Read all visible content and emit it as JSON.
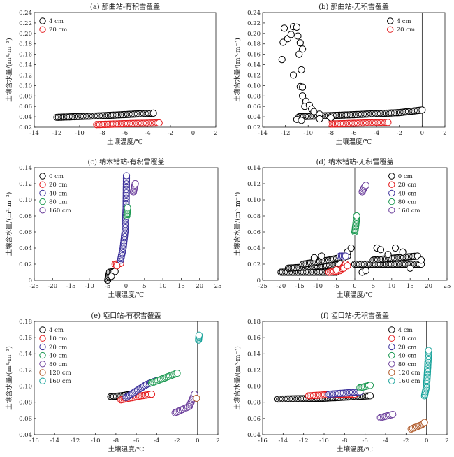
{
  "chart_data": [
    {
      "type": "scatter",
      "title": "(a) 那曲站-有积雪覆盖",
      "xlabel": "土壤温度/℃",
      "ylabel": "土壤含水量/(m³·m⁻³)",
      "xlim": [
        -14,
        2
      ],
      "ylim": [
        0.02,
        0.24
      ],
      "xticks": [
        -14,
        -12,
        -10,
        -8,
        -6,
        -4,
        -2,
        0,
        2
      ],
      "yticks": [
        0.02,
        0.04,
        0.06,
        0.08,
        0.1,
        0.12,
        0.14,
        0.16,
        0.18,
        0.2,
        0.22,
        0.24
      ],
      "ytick_labels": [
        "0.02",
        "0.04",
        "0.06",
        "0.08",
        "0.10",
        "0.12",
        "0.14",
        "0.16",
        "0.18",
        "0.20",
        "0.22",
        "0.24"
      ],
      "vline": 0,
      "legend": "top-left",
      "series": [
        {
          "name": "4 cm",
          "color": "#000000",
          "segments": [
            [
              [
                -12.0,
                0.039
              ],
              [
                -8.0,
                0.042
              ],
              [
                -3.5,
                0.047
              ]
            ]
          ],
          "points": []
        },
        {
          "name": "20 cm",
          "color": "#e41a1c",
          "segments": [
            [
              [
                -8.5,
                0.025
              ],
              [
                -5.5,
                0.027
              ],
              [
                -3.0,
                0.028
              ]
            ]
          ],
          "points": []
        }
      ]
    },
    {
      "type": "scatter",
      "title": "(b) 那曲站-无积雪覆盖",
      "xlabel": "土壤温度/℃",
      "ylabel": "土壤含水量/(m³·m⁻³)",
      "xlim": [
        -14,
        2
      ],
      "ylim": [
        0.02,
        0.24
      ],
      "xticks": [
        -14,
        -12,
        -10,
        -8,
        -6,
        -4,
        -2,
        0,
        2
      ],
      "yticks": [
        0.02,
        0.04,
        0.06,
        0.08,
        0.1,
        0.12,
        0.14,
        0.16,
        0.18,
        0.2,
        0.22,
        0.24
      ],
      "ytick_labels": [
        "0.02",
        "0.04",
        "0.06",
        "0.08",
        "0.10",
        "0.12",
        "0.14",
        "0.16",
        "0.18",
        "0.20",
        "0.22",
        "0.24"
      ],
      "vline": 0,
      "legend": "top-right",
      "series": [
        {
          "name": "4 cm",
          "color": "#000000",
          "segments": [
            [
              [
                -10.8,
                0.04
              ],
              [
                -6.0,
                0.044
              ],
              [
                -2.0,
                0.048
              ],
              [
                0.0,
                0.053
              ]
            ]
          ],
          "points": [
            [
              -12.3,
              0.15
            ],
            [
              -12.2,
              0.183
            ],
            [
              -12.1,
              0.21
            ],
            [
              -11.8,
              0.19
            ],
            [
              -11.5,
              0.198
            ],
            [
              -11.3,
              0.213
            ],
            [
              -11.0,
              0.212
            ],
            [
              -10.9,
              0.195
            ],
            [
              -10.7,
              0.182
            ],
            [
              -10.5,
              0.17
            ],
            [
              -10.8,
              0.16
            ],
            [
              -11.3,
              0.12
            ],
            [
              -10.6,
              0.13
            ],
            [
              -10.7,
              0.098
            ],
            [
              -10.5,
              0.097
            ],
            [
              -10.5,
              0.08
            ],
            [
              -10.2,
              0.07
            ],
            [
              -10.3,
              0.06
            ],
            [
              -9.9,
              0.062
            ],
            [
              -9.7,
              0.055
            ],
            [
              -9.5,
              0.05
            ],
            [
              -9.0,
              0.045
            ],
            [
              -11.0,
              0.035
            ],
            [
              -10.6,
              0.033
            ],
            [
              -9.0,
              0.036
            ],
            [
              -8.0,
              0.038
            ]
          ]
        },
        {
          "name": "20 cm",
          "color": "#e41a1c",
          "segments": [
            [
              [
                -8.0,
                0.026
              ],
              [
                -5.0,
                0.028
              ],
              [
                -3.0,
                0.029
              ]
            ]
          ],
          "points": []
        }
      ]
    },
    {
      "type": "scatter",
      "title": "(c) 纳木错站-有积雪覆盖",
      "xlabel": "土壤温度/℃",
      "ylabel": "土壤含水量/(m³·m⁻³)",
      "xlim": [
        -25,
        25
      ],
      "ylim": [
        0,
        0.14
      ],
      "xticks": [
        -25,
        -20,
        -15,
        -10,
        -5,
        0,
        5,
        10,
        15,
        20,
        25
      ],
      "yticks": [
        0,
        0.02,
        0.04,
        0.06,
        0.08,
        0.1,
        0.12,
        0.14
      ],
      "ytick_labels": [
        "0",
        "0.02",
        "0.04",
        "0.06",
        "0.08",
        "0.10",
        "0.12",
        "0.14"
      ],
      "vline": 0,
      "legend": "top-left",
      "series": [
        {
          "name": "0 cm",
          "color": "#000000",
          "segments": [
            [
              [
                -5.0,
                0.0
              ],
              [
                -4.5,
                0.01
              ],
              [
                -3.0,
                0.011
              ]
            ]
          ],
          "points": [
            [
              -4.0,
              0.005
            ]
          ]
        },
        {
          "name": "20 cm",
          "color": "#e41a1c",
          "segments": [
            [
              [
                -3.0,
                0.02
              ],
              [
                -1.5,
                0.021
              ]
            ]
          ],
          "points": [
            [
              -2.5,
              0.018
            ]
          ]
        },
        {
          "name": "40 cm",
          "color": "#3a2f9a",
          "segments": [
            [
              [
                -1.5,
                0.025
              ],
              [
                -0.8,
                0.04
              ],
              [
                -0.3,
                0.06
              ],
              [
                0.0,
                0.09
              ],
              [
                0.1,
                0.13
              ]
            ]
          ],
          "points": []
        },
        {
          "name": "80 cm",
          "color": "#1a9850",
          "segments": [
            [
              [
                0.2,
                0.08
              ],
              [
                0.4,
                0.09
              ]
            ]
          ],
          "points": []
        },
        {
          "name": "160 cm",
          "color": "#6a3d9a",
          "segments": [
            [
              [
                2.0,
                0.11
              ],
              [
                2.5,
                0.12
              ]
            ]
          ],
          "points": []
        }
      ]
    },
    {
      "type": "scatter",
      "title": "(d) 纳木错站-无积雪覆盖",
      "xlabel": "土壤温度/℃",
      "ylabel": "土壤含水量/(m³·m⁻³)",
      "xlim": [
        -25,
        25
      ],
      "ylim": [
        0,
        0.14
      ],
      "xticks": [
        -25,
        -20,
        -15,
        -10,
        -5,
        0,
        5,
        10,
        15,
        20,
        25
      ],
      "yticks": [
        0,
        0.02,
        0.04,
        0.06,
        0.08,
        0.1,
        0.12,
        0.14
      ],
      "ytick_labels": [
        "0",
        "0.02",
        "0.04",
        "0.06",
        "0.08",
        "0.10",
        "0.12",
        "0.14"
      ],
      "vline": 0,
      "legend": "top-right",
      "series": [
        {
          "name": "0 cm",
          "color": "#000000",
          "segments": [
            [
              [
                -20.0,
                0.01
              ],
              [
                -10.0,
                0.01
              ],
              [
                -5.0,
                0.01
              ]
            ],
            [
              [
                -18.0,
                0.015
              ],
              [
                -8.0,
                0.018
              ],
              [
                -4.0,
                0.02
              ]
            ],
            [
              [
                -14.0,
                0.02
              ],
              [
                -7.0,
                0.025
              ],
              [
                -2.0,
                0.03
              ]
            ],
            [
              [
                0.0,
                0.02
              ],
              [
                10.0,
                0.02
              ],
              [
                18.0,
                0.02
              ]
            ],
            [
              [
                5.0,
                0.025
              ],
              [
                12.0,
                0.028
              ],
              [
                17.0,
                0.03
              ]
            ]
          ],
          "points": [
            [
              -3.0,
              0.028
            ],
            [
              -2.0,
              0.035
            ],
            [
              -1.0,
              0.04
            ],
            [
              6.0,
              0.04
            ],
            [
              7.0,
              0.038
            ],
            [
              11.0,
              0.04
            ],
            [
              13.0,
              0.035
            ],
            [
              2.0,
              0.01
            ],
            [
              3.0,
              0.012
            ],
            [
              15.0,
              0.015
            ],
            [
              18.0,
              0.025
            ],
            [
              9.0,
              0.032
            ],
            [
              -11.0,
              0.028
            ],
            [
              -9.0,
              0.03
            ]
          ]
        },
        {
          "name": "20 cm",
          "color": "#e41a1c",
          "segments": [
            [
              [
                -7.0,
                0.01
              ],
              [
                -4.0,
                0.012
              ],
              [
                -2.5,
                0.02
              ]
            ]
          ],
          "points": [
            [
              -3.0,
              0.015
            ],
            [
              -2.0,
              0.018
            ],
            [
              -5.0,
              0.013
            ]
          ]
        },
        {
          "name": "40 cm",
          "color": "#3a2f9a",
          "segments": [
            [
              [
                -4.0,
                0.03
              ],
              [
                -2.5,
                0.03
              ]
            ]
          ],
          "points": []
        },
        {
          "name": "80 cm",
          "color": "#1a9850",
          "segments": [
            [
              [
                0.0,
                0.06
              ],
              [
                0.3,
                0.07
              ],
              [
                0.5,
                0.08
              ]
            ]
          ],
          "points": []
        },
        {
          "name": "160 cm",
          "color": "#6a3d9a",
          "segments": [
            [
              [
                2.0,
                0.11
              ],
              [
                2.5,
                0.115
              ],
              [
                3.0,
                0.118
              ]
            ]
          ],
          "points": []
        }
      ]
    },
    {
      "type": "scatter",
      "title": "(e) 埡口站-有积雪覆盖",
      "xlabel": "土壤温度/℃",
      "ylabel": "土壤含水量/(m³·m⁻³)",
      "xlim": [
        -16,
        2
      ],
      "ylim": [
        0.04,
        0.18
      ],
      "xticks": [
        -16,
        -14,
        -12,
        -10,
        -8,
        -6,
        -4,
        -2,
        0,
        2
      ],
      "yticks": [
        0.04,
        0.06,
        0.08,
        0.1,
        0.12,
        0.14,
        0.16,
        0.18
      ],
      "ytick_labels": [
        "0.04",
        "0.06",
        "0.08",
        "0.10",
        "0.12",
        "0.14",
        "0.16",
        "0.18"
      ],
      "vline": 0,
      "legend": "top-left",
      "series": [
        {
          "name": "4 cm",
          "color": "#000000",
          "segments": [
            [
              [
                -8.5,
                0.087
              ],
              [
                -7.5,
                0.088
              ],
              [
                -6.5,
                0.09
              ]
            ]
          ],
          "points": []
        },
        {
          "name": "10 cm",
          "color": "#e41a1c",
          "segments": [
            [
              [
                -7.5,
                0.083
              ],
              [
                -5.5,
                0.088
              ],
              [
                -4.5,
                0.09
              ]
            ]
          ],
          "points": []
        },
        {
          "name": "20 cm",
          "color": "#3a2f9a",
          "segments": [
            [
              [
                -7.0,
                0.086
              ],
              [
                -5.0,
                0.102
              ],
              [
                -4.0,
                0.107
              ]
            ]
          ],
          "points": []
        },
        {
          "name": "40 cm",
          "color": "#1a9850",
          "segments": [
            [
              [
                -4.5,
                0.104
              ],
              [
                -2.0,
                0.116
              ]
            ]
          ],
          "points": []
        },
        {
          "name": "80 cm",
          "color": "#6a3d9a",
          "segments": [
            [
              [
                -2.2,
                0.067
              ],
              [
                -0.8,
                0.075
              ],
              [
                -0.3,
                0.09
              ]
            ]
          ],
          "points": []
        },
        {
          "name": "120 cm",
          "color": "#b05a2a",
          "segments": [],
          "points": [
            [
              -0.1,
              0.085
            ]
          ]
        },
        {
          "name": "160 cm",
          "color": "#17a29a",
          "segments": [
            [
              [
                0.1,
                0.157
              ],
              [
                0.15,
                0.163
              ]
            ]
          ],
          "points": []
        }
      ]
    },
    {
      "type": "scatter",
      "title": "(f) 埡口站-无积雪覆盖",
      "xlabel": "土壤温度/℃",
      "ylabel": "土壤含水量/(m³·m⁻³)",
      "xlim": [
        -16,
        2
      ],
      "ylim": [
        0.04,
        0.18
      ],
      "xticks": [
        -16,
        -14,
        -12,
        -10,
        -8,
        -6,
        -4,
        -2,
        0,
        2
      ],
      "yticks": [
        0.04,
        0.06,
        0.08,
        0.1,
        0.12,
        0.14,
        0.16,
        0.18
      ],
      "ytick_labels": [
        "0.04",
        "0.06",
        "0.08",
        "0.10",
        "0.12",
        "0.14",
        "0.16",
        "0.18"
      ],
      "vline": 0,
      "legend": "top-right",
      "series": [
        {
          "name": "4 cm",
          "color": "#000000",
          "segments": [
            [
              [
                -14.5,
                0.084
              ],
              [
                -10.0,
                0.085
              ],
              [
                -5.5,
                0.088
              ]
            ]
          ],
          "points": []
        },
        {
          "name": "10 cm",
          "color": "#e41a1c",
          "segments": [
            [
              [
                -11.5,
                0.088
              ],
              [
                -9.0,
                0.09
              ],
              [
                -7.0,
                0.09
              ]
            ]
          ],
          "points": []
        },
        {
          "name": "20 cm",
          "color": "#3a2f9a",
          "segments": [
            [
              [
                -9.5,
                0.09
              ],
              [
                -7.5,
                0.092
              ],
              [
                -6.5,
                0.093
              ]
            ]
          ],
          "points": []
        },
        {
          "name": "40 cm",
          "color": "#1a9850",
          "segments": [
            [
              [
                -6.5,
                0.098
              ],
              [
                -5.5,
                0.101
              ]
            ]
          ],
          "points": []
        },
        {
          "name": "80 cm",
          "color": "#6a3d9a",
          "segments": [
            [
              [
                -4.5,
                0.061
              ],
              [
                -3.3,
                0.065
              ]
            ]
          ],
          "points": []
        },
        {
          "name": "120 cm",
          "color": "#b05a2a",
          "segments": [
            [
              [
                -1.5,
                0.047
              ],
              [
                -0.5,
                0.052
              ],
              [
                -0.2,
                0.055
              ]
            ]
          ],
          "points": []
        },
        {
          "name": "160 cm",
          "color": "#17a29a",
          "segments": [
            [
              [
                -0.2,
                0.088
              ],
              [
                0.0,
                0.1
              ],
              [
                0.1,
                0.12
              ],
              [
                0.2,
                0.144
              ]
            ]
          ],
          "points": []
        }
      ]
    }
  ]
}
